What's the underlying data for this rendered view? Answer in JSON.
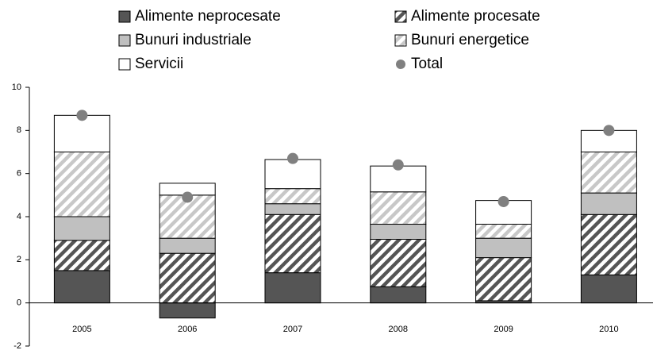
{
  "chart_data": {
    "type": "stacked_bar",
    "categories": [
      "2005",
      "2006",
      "2007",
      "2008",
      "2009",
      "2010"
    ],
    "series": [
      {
        "name": "Alimente neprocesate",
        "color": "#555555",
        "fill": "solid",
        "values": [
          1.5,
          -0.7,
          1.4,
          0.75,
          0.1,
          1.3
        ]
      },
      {
        "name": "Alimente procesate",
        "color": "#555555",
        "fill": "hatch",
        "values": [
          1.4,
          2.3,
          2.7,
          2.2,
          2.0,
          2.8
        ]
      },
      {
        "name": "Bunuri industriale",
        "color": "#c0c0c0",
        "fill": "solid",
        "values": [
          1.1,
          0.7,
          0.5,
          0.7,
          0.9,
          1.0
        ]
      },
      {
        "name": "Bunuri energetice",
        "color": "#c8c8c8",
        "fill": "hatch",
        "values": [
          3.0,
          2.0,
          0.7,
          1.5,
          0.65,
          1.9
        ]
      },
      {
        "name": "Servicii",
        "color": "#ffffff",
        "fill": "solid",
        "values": [
          1.7,
          0.55,
          1.35,
          1.2,
          1.1,
          1.0
        ]
      }
    ],
    "total": {
      "name": "Total",
      "color": "#808080",
      "values": [
        8.7,
        4.9,
        6.7,
        6.4,
        4.7,
        8.0
      ]
    },
    "ylim": [
      -2,
      10
    ],
    "yticks": [
      -2,
      0,
      2,
      4,
      6,
      8,
      10
    ],
    "grid": false,
    "legend": "top"
  }
}
